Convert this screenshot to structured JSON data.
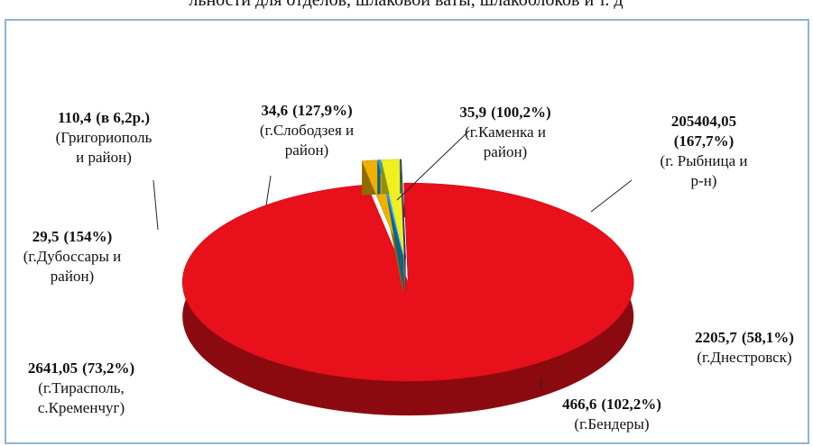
{
  "chart_data": {
    "type": "pie",
    "title": "льности для отделов, шлаковой ваты, шлакоблоков и т. д",
    "categories": [
      [
        "(г.Каменка и",
        "район)"
      ],
      [
        "(г. Рыбница и",
        "р-н)"
      ],
      [
        "(г.Днестровск)"
      ],
      [
        "(г.Бендеры)"
      ],
      [
        "(г.Тирасполь,",
        "с.Кременчуг)"
      ],
      [
        "(г.Дубоссары и",
        "район)"
      ],
      [
        "(Григориополь",
        "и район)"
      ],
      [
        "(г.Слободзея и",
        "район)"
      ]
    ],
    "values": [
      35.9,
      205404.05,
      2205.7,
      466.6,
      2641.05,
      29.5,
      110.4,
      34.6
    ],
    "value_labels": [
      "35,9",
      "205404,05",
      "2205,7",
      "466,6",
      "2641,05",
      "29,5",
      "110,4",
      "34,6"
    ],
    "growth_labels": [
      "(100,2%)",
      "(167,7%)",
      "(58,1%)",
      "(102,2%)",
      "(73,2%)",
      "(154%)",
      "(в 6,2р.)",
      "(127,9%)"
    ],
    "colors": [
      "#8fc73e",
      "#e8101a",
      "#f0b000",
      "#1aa0e0",
      "#f0f020",
      "#40a0c0",
      "#108040",
      "#7030a0"
    ]
  }
}
